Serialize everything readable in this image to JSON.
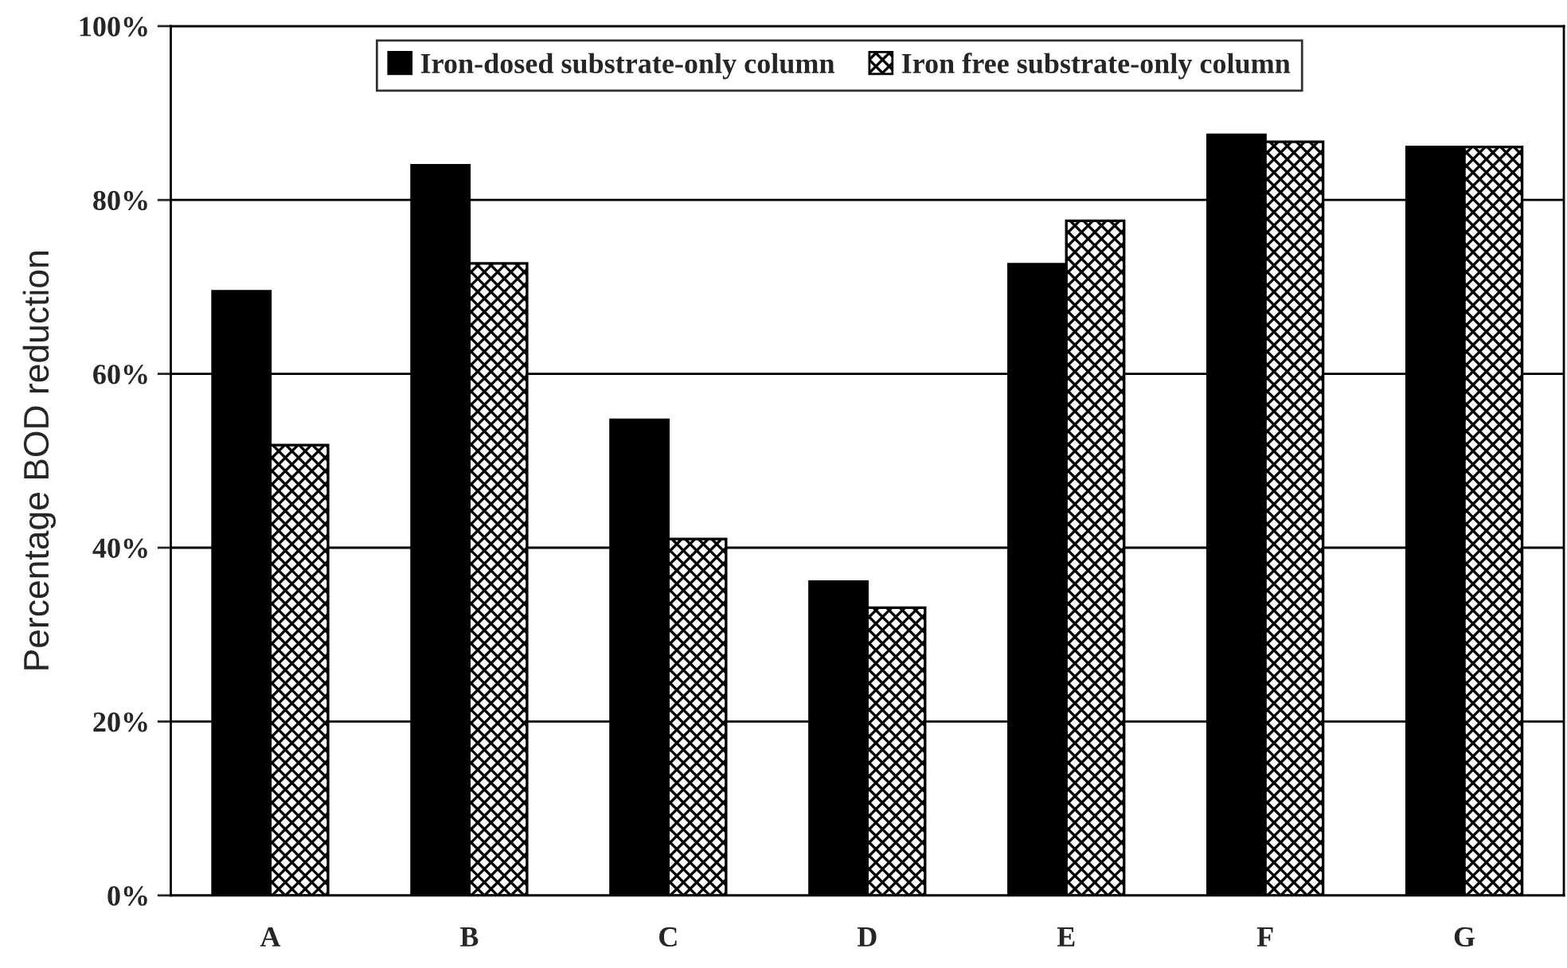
{
  "chart_data": {
    "type": "bar",
    "ylabel": "Percentage BOD reduction",
    "categories": [
      "A",
      "B",
      "C",
      "D",
      "E",
      "F",
      "G"
    ],
    "series": [
      {
        "name": "Iron-dosed substrate-only column",
        "color": "#000000",
        "values": [
          69.5,
          84.0,
          54.7,
          36.1,
          72.6,
          87.5,
          86.1
        ]
      },
      {
        "name": "Iron free substrate-only column",
        "color": "#000000",
        "values": [
          51.8,
          72.7,
          41.0,
          33.1,
          77.6,
          86.7,
          86.1
        ]
      }
    ],
    "ylim": [
      0,
      100
    ],
    "yticks": [
      {
        "value": 0,
        "label": "0%"
      },
      {
        "value": 20,
        "label": "20%"
      },
      {
        "value": 40,
        "label": "40%"
      },
      {
        "value": 60,
        "label": "60%"
      },
      {
        "value": 80,
        "label": "80%"
      },
      {
        "value": 100,
        "label": "100%"
      }
    ],
    "grid": "y",
    "legend": "top"
  }
}
